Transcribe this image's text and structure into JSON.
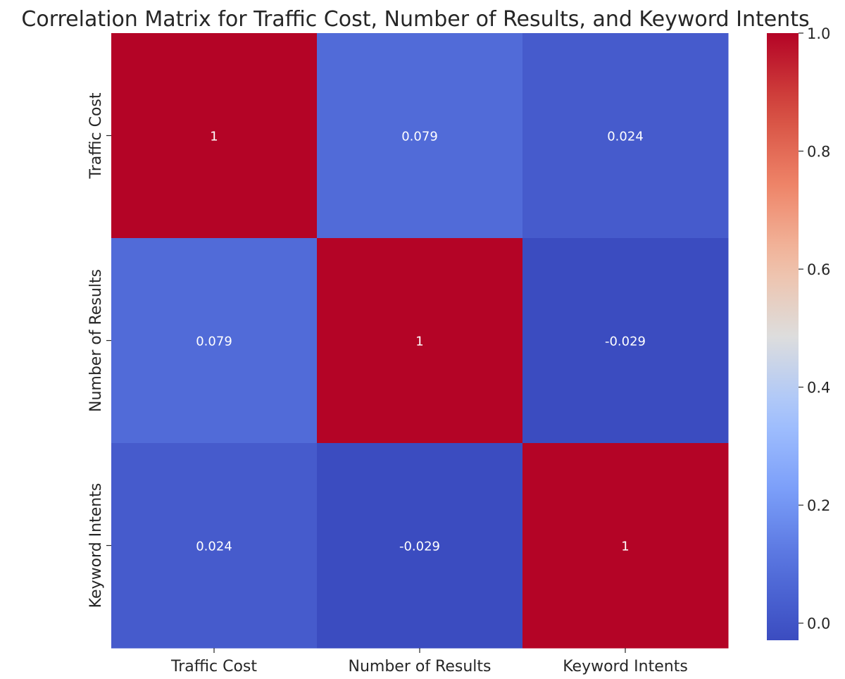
{
  "chart_data": {
    "type": "heatmap",
    "title": "Correlation Matrix for Traffic Cost, Number of Results, and Keyword Intents",
    "xlabel": "",
    "ylabel": "",
    "x_categories": [
      "Traffic Cost",
      "Number of Results",
      "Keyword Intents"
    ],
    "y_categories": [
      "Traffic Cost",
      "Number of Results",
      "Keyword Intents"
    ],
    "values": [
      [
        1,
        0.079,
        0.024
      ],
      [
        0.079,
        1,
        -0.029
      ],
      [
        0.024,
        -0.029,
        1
      ]
    ],
    "cell_labels": [
      [
        "1",
        "0.079",
        "0.024"
      ],
      [
        "0.079",
        "1",
        "-0.029"
      ],
      [
        "0.024",
        "-0.029",
        "1"
      ]
    ],
    "colormap": "coolwarm",
    "colorbar": {
      "range": [
        -0.029,
        1.0
      ],
      "ticks": [
        0.0,
        0.2,
        0.4,
        0.6,
        0.8,
        1.0
      ],
      "tick_labels": [
        "0.0",
        "0.2",
        "0.4",
        "0.6",
        "0.8",
        "1.0"
      ]
    },
    "grid": false,
    "legend": "colorbar-right"
  }
}
